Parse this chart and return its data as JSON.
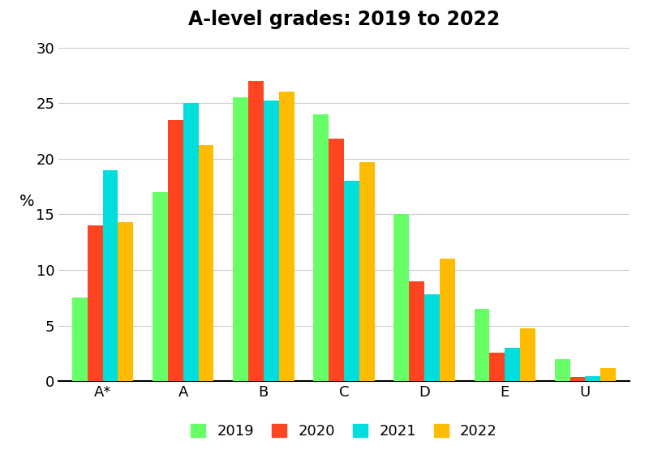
{
  "title": "A-level grades: 2019 to 2022",
  "categories": [
    "A*",
    "A",
    "B",
    "C",
    "D",
    "E",
    "U"
  ],
  "years": [
    "2019",
    "2020",
    "2021",
    "2022"
  ],
  "values": {
    "2019": [
      7.5,
      17.0,
      25.5,
      24.0,
      15.0,
      6.5,
      2.0
    ],
    "2020": [
      14.0,
      23.5,
      27.0,
      21.8,
      9.0,
      2.6,
      0.4
    ],
    "2021": [
      19.0,
      25.0,
      25.2,
      18.0,
      7.8,
      3.0,
      0.5
    ],
    "2022": [
      14.3,
      21.2,
      26.0,
      19.7,
      11.0,
      4.8,
      1.2
    ]
  },
  "colors": {
    "2019": "#66ff66",
    "2020": "#ff4422",
    "2021": "#00dddd",
    "2022": "#ffbb00"
  },
  "ylabel": "%",
  "ylim": [
    0,
    31
  ],
  "yticks": [
    0,
    5,
    10,
    15,
    20,
    25,
    30
  ],
  "background_color": "#ffffff",
  "title_fontsize": 17,
  "tick_fontsize": 13,
  "legend_fontsize": 13,
  "bar_width": 0.19,
  "grid": true
}
